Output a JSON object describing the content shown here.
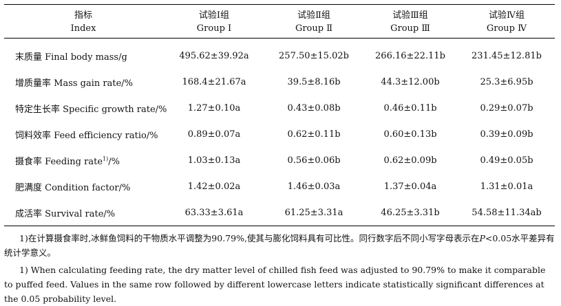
{
  "header": {
    "index_zh": "指标",
    "index_en": "Index",
    "groups": [
      {
        "zh": "试验Ⅰ组",
        "en": "Group Ⅰ"
      },
      {
        "zh": "试验Ⅱ组",
        "en": "Group Ⅱ"
      },
      {
        "zh": "试验Ⅲ组",
        "en": "Group Ⅲ"
      },
      {
        "zh": "试验Ⅳ组",
        "en": "Group Ⅳ"
      }
    ]
  },
  "rows": [
    {
      "label": "末质量 Final body mass/g",
      "values": [
        "495.62±39.92a",
        "257.50±15.02b",
        "266.16±22.11b",
        "231.45±12.81b"
      ]
    },
    {
      "label": "增质量率 Mass gain rate/%",
      "values": [
        "168.4±21.67a",
        "39.5±8.16b",
        "44.3±12.00b",
        "25.3±6.95b"
      ]
    },
    {
      "label": "特定生长率 Specific growth rate/%",
      "values": [
        "1.27±0.10a",
        "0.43±0.08b",
        "0.46±0.11b",
        "0.29±0.07b"
      ]
    },
    {
      "label": "饲料效率 Feed efficiency ratio/%",
      "values": [
        "0.89±0.07a",
        "0.62±0.11b",
        "0.60±0.13b",
        "0.39±0.09b"
      ]
    },
    {
      "label_main": "摄食率 Feeding rate",
      "label_sup": "1)",
      "label_tail": "/%",
      "values": [
        "1.03±0.13a",
        "0.56±0.06b",
        "0.62±0.09b",
        "0.49±0.05b"
      ]
    },
    {
      "label": "肥满度 Condition factor/%",
      "values": [
        "1.42±0.02a",
        "1.46±0.03a",
        "1.37±0.04a",
        "1.31±0.01a"
      ]
    },
    {
      "label": "成活率 Survival rate/%",
      "values": [
        "63.33±3.61a",
        "61.25±3.31a",
        "46.25±3.31b",
        "54.58±11.34ab"
      ]
    }
  ],
  "notes": {
    "zh_part1": "1)在计算摄食率时,冰鲜鱼饲料的干物质水平调整为90.79%,使其与膨化饲料具有可比性。同行数字后不同小写字母表示在",
    "zh_p": "P",
    "zh_part2": "<0.05水平差异有统计学意义。",
    "en": "1) When calculating feeding rate, the dry matter level of chilled fish feed was adjusted to 90.79% to make it comparable to puffed feed. Values in the same row followed by different lowercase letters indicate statistically significant differences at the 0.05 probability level."
  }
}
